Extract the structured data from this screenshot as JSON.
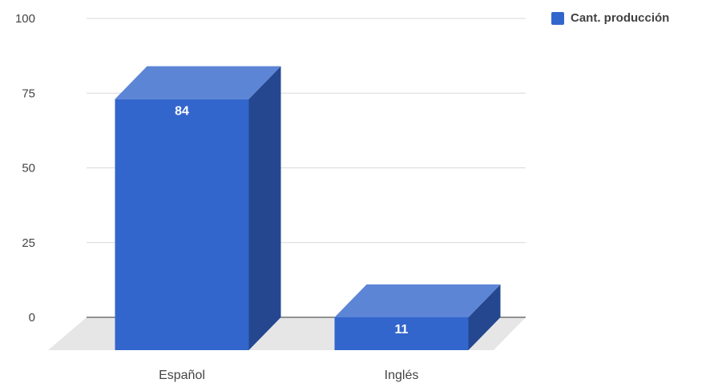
{
  "chart_data": {
    "type": "bar",
    "style": "3d-column",
    "categories": [
      "Español",
      "Inglés"
    ],
    "series": [
      {
        "name": "Cant. producción",
        "values": [
          84,
          11
        ],
        "color": "#3366cc"
      }
    ],
    "data_labels": [
      "84",
      "11"
    ],
    "yticks": [
      "0",
      "25",
      "50",
      "75",
      "100"
    ],
    "ylim": [
      0,
      100
    ],
    "grid": true,
    "legend_position": "top-right"
  },
  "colors": {
    "bar_front": "#3366cc",
    "bar_top": "#5c85d6",
    "bar_side": "#24478f",
    "floor": "#e6e6e6",
    "grid": "#d9d9d9",
    "axis_text": "#444444"
  }
}
